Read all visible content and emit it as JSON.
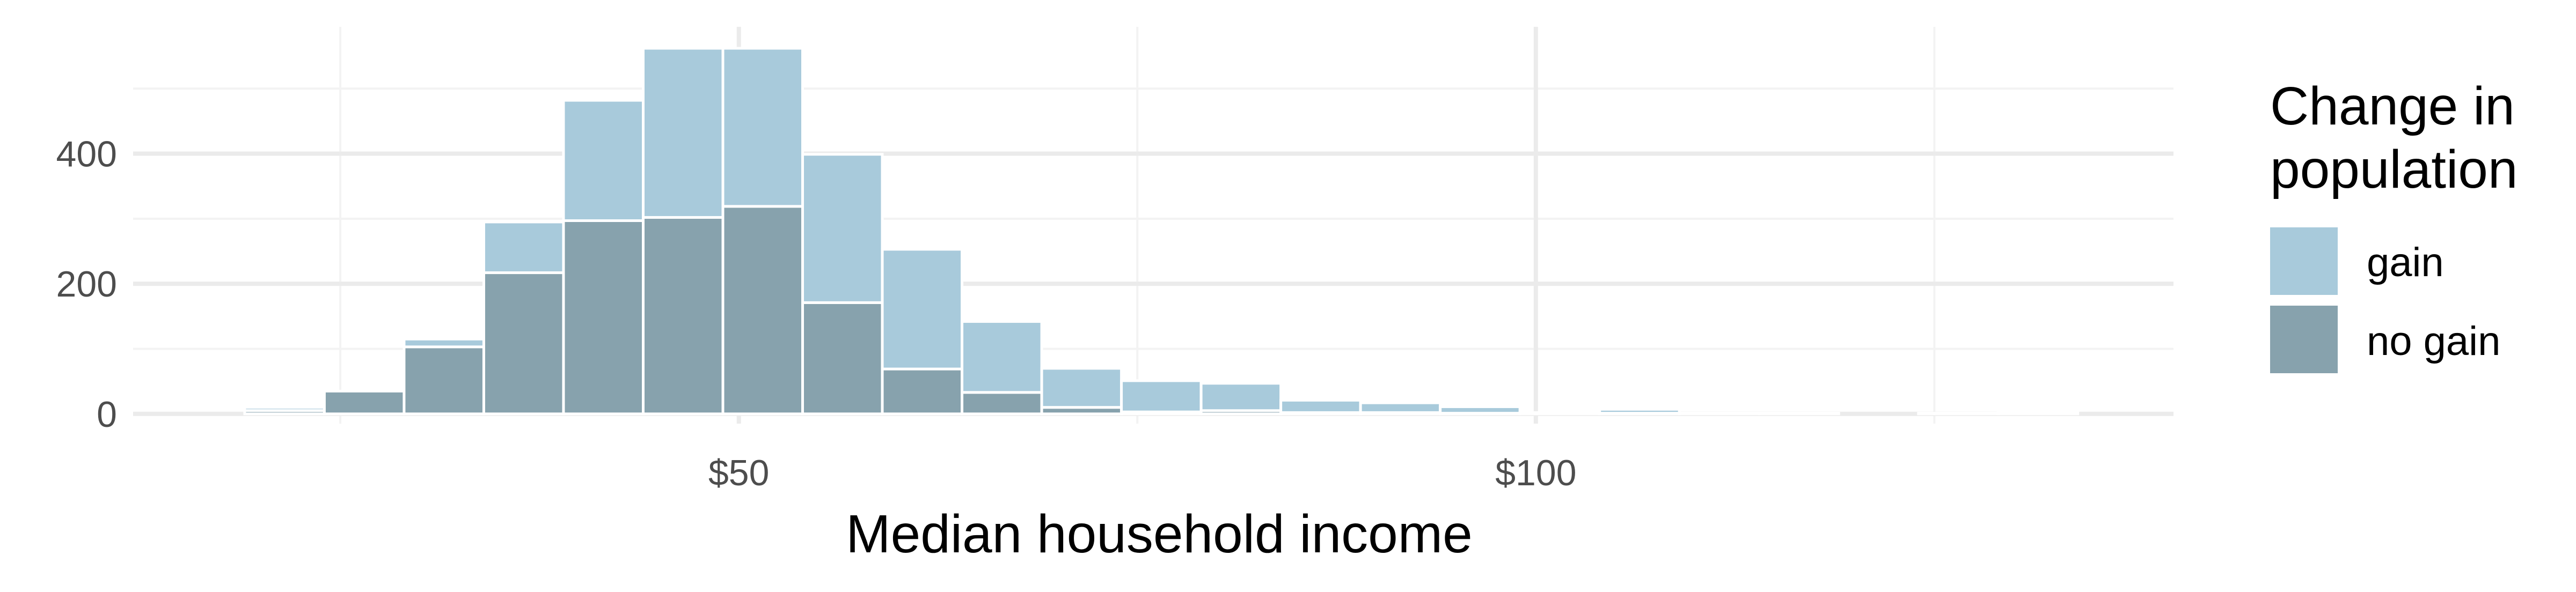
{
  "chart_data": {
    "type": "bar",
    "stacked": true,
    "title": "",
    "xlabel": "Median household income",
    "ylabel": "",
    "xlim": [
      12,
      140
    ],
    "ylim": [
      -15,
      595
    ],
    "x_ticks": [
      {
        "value": 50,
        "label": "$50"
      },
      {
        "value": 100,
        "label": "$100"
      }
    ],
    "y_ticks": [
      {
        "value": 0,
        "label": "0"
      },
      {
        "value": 200,
        "label": "200"
      },
      {
        "value": 400,
        "label": "400"
      }
    ],
    "grid": true,
    "legend": {
      "title_lines": [
        "Change in",
        "population"
      ],
      "position": "right",
      "entries": [
        "gain",
        "no gain"
      ]
    },
    "bin_width": 5,
    "bins": [
      {
        "x0": 19,
        "gain": 5,
        "no_gain": 5
      },
      {
        "x0": 24,
        "gain": 0,
        "no_gain": 35
      },
      {
        "x0": 29,
        "gain": 12,
        "no_gain": 103
      },
      {
        "x0": 34,
        "gain": 78,
        "no_gain": 217
      },
      {
        "x0": 39,
        "gain": 185,
        "no_gain": 297
      },
      {
        "x0": 44,
        "gain": 260,
        "no_gain": 302
      },
      {
        "x0": 49,
        "gain": 243,
        "no_gain": 319
      },
      {
        "x0": 54,
        "gain": 228,
        "no_gain": 171
      },
      {
        "x0": 59,
        "gain": 184,
        "no_gain": 69
      },
      {
        "x0": 64,
        "gain": 109,
        "no_gain": 33
      },
      {
        "x0": 69,
        "gain": 60,
        "no_gain": 10
      },
      {
        "x0": 74,
        "gain": 48,
        "no_gain": 3
      },
      {
        "x0": 79,
        "gain": 42,
        "no_gain": 5
      },
      {
        "x0": 84,
        "gain": 19,
        "no_gain": 2
      },
      {
        "x0": 89,
        "gain": 15,
        "no_gain": 2
      },
      {
        "x0": 94,
        "gain": 10,
        "no_gain": 1
      },
      {
        "x0": 99,
        "gain": 2,
        "no_gain": 0
      },
      {
        "x0": 104,
        "gain": 6,
        "no_gain": 1
      },
      {
        "x0": 109,
        "gain": 1,
        "no_gain": 0
      },
      {
        "x0": 114,
        "gain": 1,
        "no_gain": 0
      },
      {
        "x0": 119,
        "gain": 0,
        "no_gain": 0
      },
      {
        "x0": 124,
        "gain": 1,
        "no_gain": 0
      },
      {
        "x0": 129,
        "gain": 2,
        "no_gain": 0
      }
    ],
    "colors": {
      "gain": "#a8cadb",
      "no_gain": "#87a2ad",
      "grid_major": "#ebebeb",
      "grid_minor": "#f3f3f3"
    }
  }
}
